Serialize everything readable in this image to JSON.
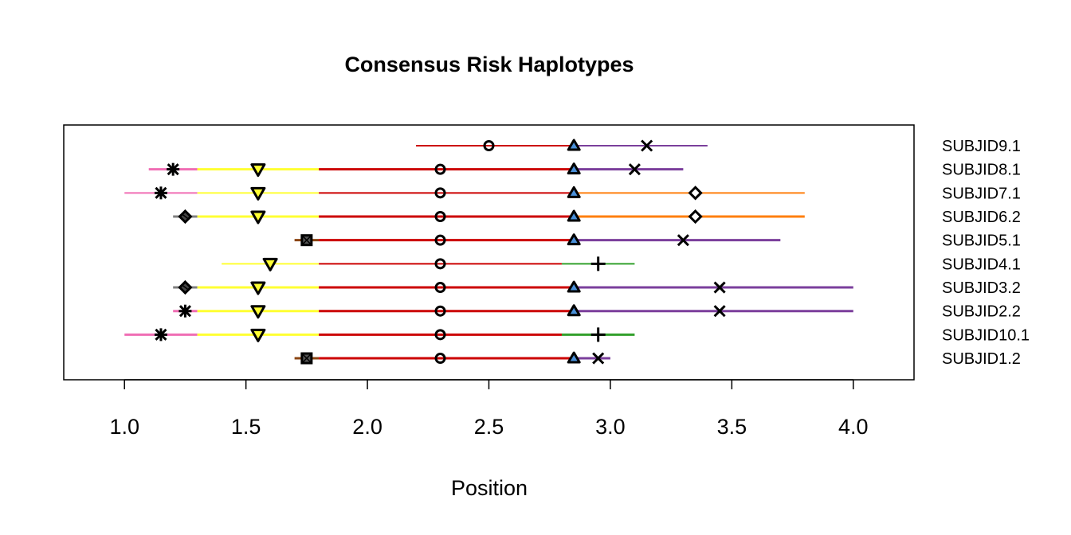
{
  "chart_data": {
    "type": "segment-dot",
    "title": "Consensus Risk Haplotypes",
    "xlabel": "Position",
    "ylabel": "",
    "xlim": [
      0.75,
      4.25
    ],
    "xticks": [
      "1.0",
      "1.5",
      "2.0",
      "2.5",
      "3.0",
      "3.5",
      "4.0"
    ],
    "grid": false,
    "legend": "none",
    "rows": [
      {
        "label": "SUBJID9.1",
        "segments": [
          {
            "from": 2.2,
            "to": 2.85,
            "color": "#cc0000",
            "width": 2
          },
          {
            "from": 2.85,
            "to": 3.4,
            "color": "#7b3f9c",
            "width": 2
          }
        ],
        "markers": [
          {
            "x": 2.5,
            "shape": "circle"
          },
          {
            "x": 2.85,
            "shape": "triangle",
            "fill": "#4a90d9"
          },
          {
            "x": 3.15,
            "shape": "x"
          }
        ]
      },
      {
        "label": "SUBJID8.1",
        "segments": [
          {
            "from": 1.1,
            "to": 1.3,
            "color": "#f06eb4",
            "width": 3
          },
          {
            "from": 1.3,
            "to": 1.8,
            "color": "#ffff33",
            "width": 3
          },
          {
            "from": 1.8,
            "to": 2.85,
            "color": "#cc0000",
            "width": 3
          },
          {
            "from": 2.85,
            "to": 3.3,
            "color": "#7b3f9c",
            "width": 3
          }
        ],
        "markers": [
          {
            "x": 1.2,
            "shape": "asterisk"
          },
          {
            "x": 1.55,
            "shape": "triangle-down",
            "fill": "#ffff33"
          },
          {
            "x": 2.3,
            "shape": "circle"
          },
          {
            "x": 2.85,
            "shape": "triangle",
            "fill": "#4a90d9"
          },
          {
            "x": 3.1,
            "shape": "x"
          }
        ]
      },
      {
        "label": "SUBJID7.1",
        "segments": [
          {
            "from": 1.0,
            "to": 1.3,
            "color": "#f06eb4",
            "width": 2
          },
          {
            "from": 1.3,
            "to": 1.8,
            "color": "#ffff33",
            "width": 2
          },
          {
            "from": 1.8,
            "to": 2.85,
            "color": "#cc0000",
            "width": 2
          },
          {
            "from": 2.85,
            "to": 3.8,
            "color": "#ff7f0e",
            "width": 2
          }
        ],
        "markers": [
          {
            "x": 1.15,
            "shape": "asterisk"
          },
          {
            "x": 1.55,
            "shape": "triangle-down",
            "fill": "#ffff33"
          },
          {
            "x": 2.3,
            "shape": "circle"
          },
          {
            "x": 2.85,
            "shape": "triangle",
            "fill": "#4a90d9"
          },
          {
            "x": 3.35,
            "shape": "diamond"
          }
        ]
      },
      {
        "label": "SUBJID6.2",
        "segments": [
          {
            "from": 1.2,
            "to": 1.3,
            "color": "#808080",
            "width": 3
          },
          {
            "from": 1.3,
            "to": 1.8,
            "color": "#ffff33",
            "width": 3
          },
          {
            "from": 1.8,
            "to": 2.85,
            "color": "#cc0000",
            "width": 3
          },
          {
            "from": 2.85,
            "to": 3.8,
            "color": "#ff7f0e",
            "width": 3
          }
        ],
        "markers": [
          {
            "x": 1.25,
            "shape": "diamond-filled"
          },
          {
            "x": 1.55,
            "shape": "triangle-down",
            "fill": "#ffff33"
          },
          {
            "x": 2.3,
            "shape": "circle"
          },
          {
            "x": 2.85,
            "shape": "triangle",
            "fill": "#4a90d9"
          },
          {
            "x": 3.35,
            "shape": "diamond"
          }
        ]
      },
      {
        "label": "SUBJID5.1",
        "segments": [
          {
            "from": 1.7,
            "to": 1.8,
            "color": "#8b4513",
            "width": 3
          },
          {
            "from": 1.8,
            "to": 2.85,
            "color": "#cc0000",
            "width": 3
          },
          {
            "from": 2.85,
            "to": 3.7,
            "color": "#7b3f9c",
            "width": 3
          }
        ],
        "markers": [
          {
            "x": 1.75,
            "shape": "square-filled"
          },
          {
            "x": 2.3,
            "shape": "circle"
          },
          {
            "x": 2.85,
            "shape": "triangle",
            "fill": "#4a90d9"
          },
          {
            "x": 3.3,
            "shape": "x"
          }
        ]
      },
      {
        "label": "SUBJID4.1",
        "segments": [
          {
            "from": 1.4,
            "to": 1.8,
            "color": "#ffff33",
            "width": 2
          },
          {
            "from": 1.8,
            "to": 2.8,
            "color": "#cc0000",
            "width": 2
          },
          {
            "from": 2.8,
            "to": 3.1,
            "color": "#33a02c",
            "width": 2
          }
        ],
        "markers": [
          {
            "x": 1.6,
            "shape": "triangle-down",
            "fill": "#ffff33"
          },
          {
            "x": 2.3,
            "shape": "circle"
          },
          {
            "x": 2.95,
            "shape": "plus"
          }
        ]
      },
      {
        "label": "SUBJID3.2",
        "segments": [
          {
            "from": 1.2,
            "to": 1.3,
            "color": "#808080",
            "width": 3
          },
          {
            "from": 1.3,
            "to": 1.8,
            "color": "#ffff33",
            "width": 3
          },
          {
            "from": 1.8,
            "to": 2.85,
            "color": "#cc0000",
            "width": 3
          },
          {
            "from": 2.85,
            "to": 4.0,
            "color": "#7b3f9c",
            "width": 3
          }
        ],
        "markers": [
          {
            "x": 1.25,
            "shape": "diamond-filled"
          },
          {
            "x": 1.55,
            "shape": "triangle-down",
            "fill": "#ffff33"
          },
          {
            "x": 2.3,
            "shape": "circle"
          },
          {
            "x": 2.85,
            "shape": "triangle",
            "fill": "#4a90d9"
          },
          {
            "x": 3.45,
            "shape": "x"
          }
        ]
      },
      {
        "label": "SUBJID2.2",
        "segments": [
          {
            "from": 1.2,
            "to": 1.3,
            "color": "#f06eb4",
            "width": 3
          },
          {
            "from": 1.3,
            "to": 1.8,
            "color": "#ffff33",
            "width": 3
          },
          {
            "from": 1.8,
            "to": 2.85,
            "color": "#cc0000",
            "width": 3
          },
          {
            "from": 2.85,
            "to": 4.0,
            "color": "#7b3f9c",
            "width": 3
          }
        ],
        "markers": [
          {
            "x": 1.25,
            "shape": "asterisk"
          },
          {
            "x": 1.55,
            "shape": "triangle-down",
            "fill": "#ffff33"
          },
          {
            "x": 2.3,
            "shape": "circle"
          },
          {
            "x": 2.85,
            "shape": "triangle",
            "fill": "#4a90d9"
          },
          {
            "x": 3.45,
            "shape": "x"
          }
        ]
      },
      {
        "label": "SUBJID10.1",
        "segments": [
          {
            "from": 1.0,
            "to": 1.3,
            "color": "#f06eb4",
            "width": 3
          },
          {
            "from": 1.3,
            "to": 1.8,
            "color": "#ffff33",
            "width": 3
          },
          {
            "from": 1.8,
            "to": 2.8,
            "color": "#cc0000",
            "width": 3
          },
          {
            "from": 2.8,
            "to": 3.1,
            "color": "#33a02c",
            "width": 3
          }
        ],
        "markers": [
          {
            "x": 1.15,
            "shape": "asterisk"
          },
          {
            "x": 1.55,
            "shape": "triangle-down",
            "fill": "#ffff33"
          },
          {
            "x": 2.3,
            "shape": "circle"
          },
          {
            "x": 2.95,
            "shape": "plus"
          }
        ]
      },
      {
        "label": "SUBJID1.2",
        "segments": [
          {
            "from": 1.7,
            "to": 1.8,
            "color": "#8b4513",
            "width": 3
          },
          {
            "from": 1.8,
            "to": 2.85,
            "color": "#cc0000",
            "width": 3
          },
          {
            "from": 2.85,
            "to": 3.0,
            "color": "#7b3f9c",
            "width": 3
          }
        ],
        "markers": [
          {
            "x": 1.75,
            "shape": "square-filled"
          },
          {
            "x": 2.3,
            "shape": "circle"
          },
          {
            "x": 2.85,
            "shape": "triangle",
            "fill": "#4a90d9"
          },
          {
            "x": 2.95,
            "shape": "x"
          }
        ]
      }
    ]
  }
}
